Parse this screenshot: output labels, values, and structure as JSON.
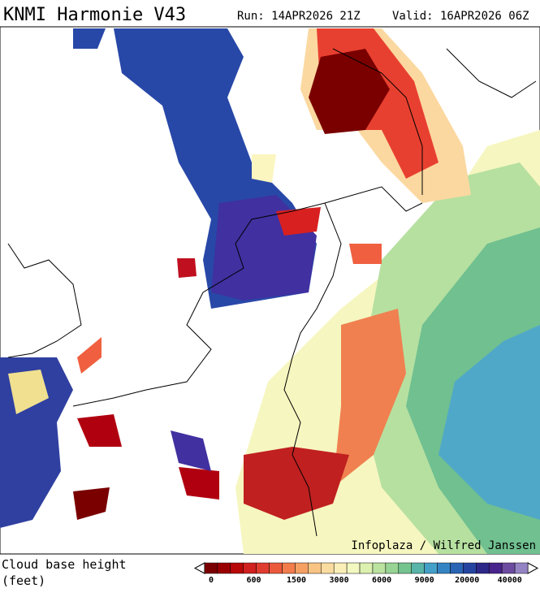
{
  "header": {
    "title": "KNMI Harmonie V43",
    "run": "Run: 14APR2026 21Z",
    "valid": "Valid: 16APR2026 06Z"
  },
  "map": {
    "credit": "Infoplaza / Wilfred Janssen"
  },
  "legend": {
    "title": "Cloud base height",
    "unit": "(feet)",
    "ticks": [
      "0",
      "600",
      "1500",
      "3000",
      "6000",
      "9000",
      "20000",
      "40000"
    ]
  }
}
